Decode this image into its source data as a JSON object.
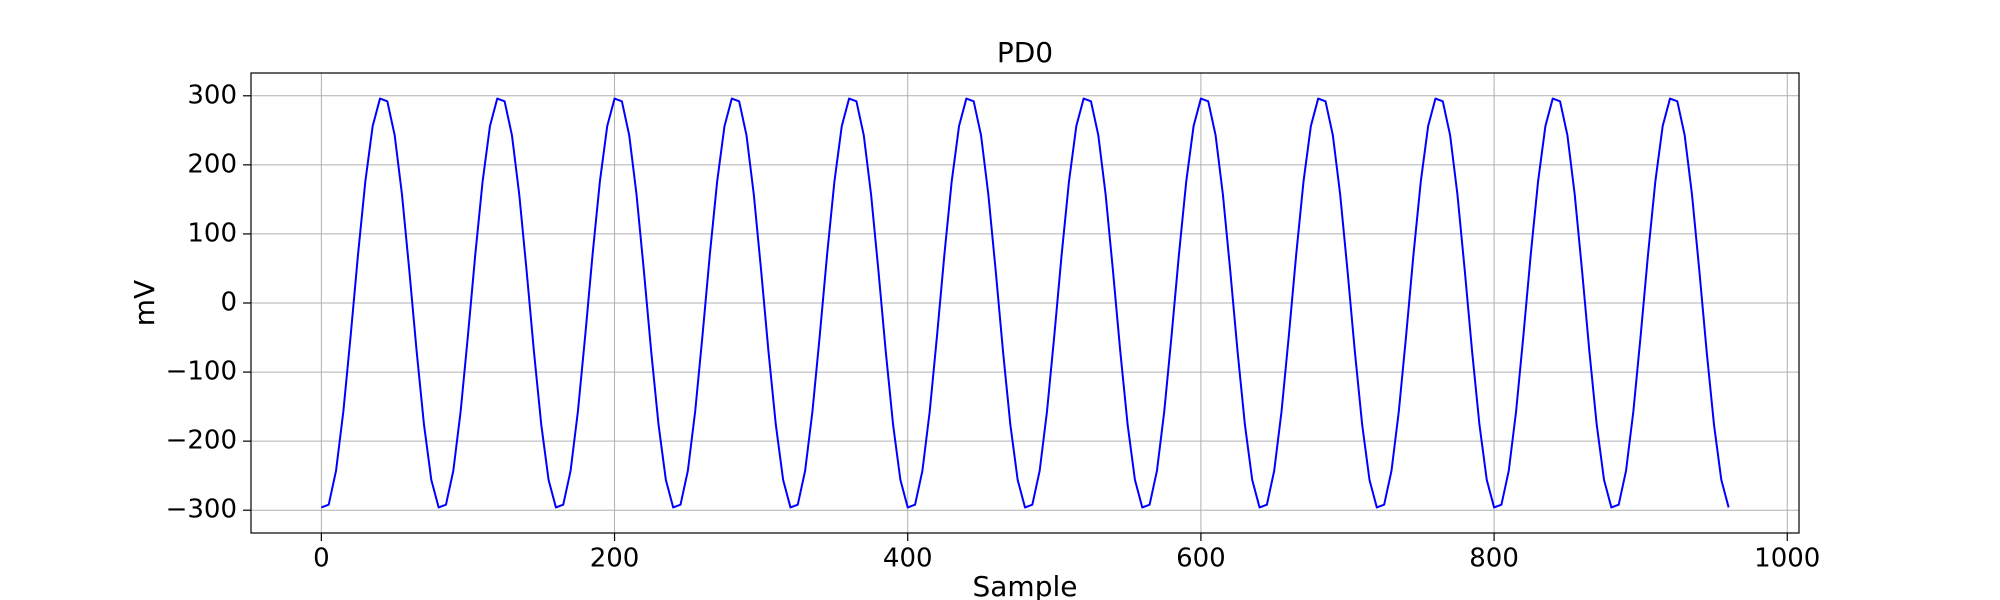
{
  "chart_data": {
    "type": "line",
    "title": "PD0",
    "xlabel": "Sample",
    "ylabel": "mV",
    "color": "#0000ff",
    "grid": true,
    "xlim": [
      -48,
      1008
    ],
    "xticks": [
      0,
      200,
      400,
      600,
      800,
      1000
    ],
    "ylim": [
      -333,
      333
    ],
    "yticks": [
      {
        "value": -300,
        "label": "−300"
      },
      {
        "value": -200,
        "label": "−200"
      },
      {
        "value": -100,
        "label": "−100"
      },
      0,
      100,
      200,
      300
    ],
    "x": [
      0,
      5,
      10,
      15,
      20,
      25,
      30,
      35,
      40,
      45,
      50,
      55,
      60,
      65,
      70,
      75,
      80,
      85,
      90,
      95,
      100,
      105,
      110,
      115,
      120,
      125,
      130,
      135,
      140,
      145,
      150,
      155,
      160,
      165,
      170,
      175,
      180,
      185,
      190,
      195,
      200,
      205,
      210,
      215,
      220,
      225,
      230,
      235,
      240,
      245,
      250,
      255,
      260,
      265,
      270,
      275,
      280,
      285,
      290,
      295,
      300,
      305,
      310,
      315,
      320,
      325,
      330,
      335,
      340,
      345,
      350,
      355,
      360,
      365,
      370,
      375,
      380,
      385,
      390,
      395,
      400,
      405,
      410,
      415,
      420,
      425,
      430,
      435,
      440,
      445,
      450,
      455,
      460,
      465,
      470,
      475,
      480,
      485,
      490,
      495,
      500,
      505,
      510,
      515,
      520,
      525,
      530,
      535,
      540,
      545,
      550,
      555,
      560,
      565,
      570,
      575,
      580,
      585,
      590,
      595,
      600,
      605,
      610,
      615,
      620,
      625,
      630,
      635,
      640,
      645,
      650,
      655,
      660,
      665,
      670,
      675,
      680,
      685,
      690,
      695,
      700,
      705,
      710,
      715,
      720,
      725,
      730,
      735,
      740,
      745,
      750,
      755,
      760,
      765,
      770,
      775,
      780,
      785,
      790,
      795,
      800,
      805,
      810,
      815,
      820,
      825,
      830,
      835,
      840,
      845,
      850,
      855,
      860,
      865,
      870,
      875,
      880,
      885,
      890,
      895,
      900,
      905,
      910,
      915,
      920,
      925,
      930,
      935,
      940,
      945,
      950,
      955,
      960
    ],
    "values": [
      -296,
      -292,
      -243,
      -157,
      -47,
      70,
      176,
      256,
      296,
      292,
      243,
      157,
      47,
      -70,
      -176,
      -256,
      -296,
      -292,
      -243,
      -157,
      -47,
      70,
      176,
      256,
      296,
      292,
      243,
      157,
      47,
      -70,
      -176,
      -256,
      -296,
      -292,
      -243,
      -157,
      -47,
      70,
      176,
      256,
      296,
      292,
      243,
      157,
      47,
      -70,
      -176,
      -256,
      -296,
      -292,
      -243,
      -157,
      -47,
      70,
      176,
      256,
      296,
      292,
      243,
      157,
      47,
      -70,
      -176,
      -256,
      -296,
      -292,
      -243,
      -157,
      -47,
      70,
      176,
      256,
      296,
      292,
      243,
      157,
      47,
      -70,
      -176,
      -256,
      -296,
      -292,
      -243,
      -157,
      -47,
      70,
      176,
      256,
      296,
      292,
      243,
      157,
      47,
      -70,
      -176,
      -256,
      -296,
      -292,
      -243,
      -157,
      -47,
      70,
      176,
      256,
      296,
      292,
      243,
      157,
      47,
      -70,
      -176,
      -256,
      -296,
      -292,
      -243,
      -157,
      -47,
      70,
      176,
      256,
      296,
      292,
      243,
      157,
      47,
      -70,
      -176,
      -256,
      -296,
      -292,
      -243,
      -157,
      -47,
      70,
      176,
      256,
      296,
      292,
      243,
      157,
      47,
      -70,
      -176,
      -256,
      -296,
      -292,
      -243,
      -157,
      -47,
      70,
      176,
      256,
      296,
      292,
      243,
      157,
      47,
      -70,
      -176,
      -256,
      -296,
      -292,
      -243,
      -157,
      -47,
      70,
      176,
      256,
      296,
      292,
      243,
      157,
      47,
      -70,
      -176,
      -256,
      -296,
      -292,
      -243,
      -157,
      -47,
      70,
      176,
      256,
      296,
      292,
      243,
      157,
      47,
      -70,
      -176,
      -256,
      -296
    ]
  }
}
